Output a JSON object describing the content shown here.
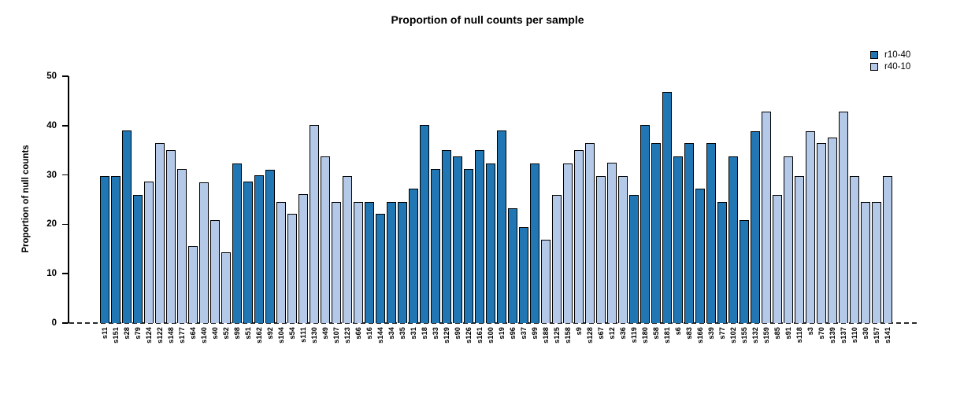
{
  "chart_data": {
    "type": "bar",
    "title": "Proportion of null counts per sample",
    "ylabel": "Proportion of null counts",
    "xlabel": "",
    "ylim": [
      0,
      50
    ],
    "yticks": [
      0,
      10,
      20,
      30,
      40,
      50
    ],
    "grid": false,
    "zero_baseline_style": "dashed",
    "legend_position": "top-right",
    "legend": [
      {
        "label": "r10-40",
        "color": "#2077b4"
      },
      {
        "label": "r40-10",
        "color": "#b4c9e7"
      }
    ],
    "series_colors": {
      "r10-40": "#2077b4",
      "r40-10": "#b4c9e7"
    },
    "bar_edge_color": "#000000",
    "bars": [
      {
        "sample": "s11",
        "value": 29.8,
        "group": "r10-40"
      },
      {
        "sample": "s151",
        "value": 29.8,
        "group": "r10-40"
      },
      {
        "sample": "s28",
        "value": 39.0,
        "group": "r10-40"
      },
      {
        "sample": "s79",
        "value": 26.0,
        "group": "r10-40"
      },
      {
        "sample": "s124",
        "value": 28.6,
        "group": "r40-10"
      },
      {
        "sample": "s122",
        "value": 36.4,
        "group": "r40-10"
      },
      {
        "sample": "s148",
        "value": 35.0,
        "group": "r40-10"
      },
      {
        "sample": "s177",
        "value": 31.2,
        "group": "r40-10"
      },
      {
        "sample": "s64",
        "value": 15.6,
        "group": "r40-10"
      },
      {
        "sample": "s140",
        "value": 28.5,
        "group": "r40-10"
      },
      {
        "sample": "s40",
        "value": 20.8,
        "group": "r40-10"
      },
      {
        "sample": "s52",
        "value": 14.3,
        "group": "r40-10"
      },
      {
        "sample": "s98",
        "value": 32.4,
        "group": "r10-40"
      },
      {
        "sample": "s51",
        "value": 28.6,
        "group": "r10-40"
      },
      {
        "sample": "s162",
        "value": 29.9,
        "group": "r10-40"
      },
      {
        "sample": "s92",
        "value": 31.1,
        "group": "r10-40"
      },
      {
        "sample": "s104",
        "value": 24.6,
        "group": "r40-10"
      },
      {
        "sample": "s54",
        "value": 22.1,
        "group": "r40-10"
      },
      {
        "sample": "s111",
        "value": 26.1,
        "group": "r40-10"
      },
      {
        "sample": "s130",
        "value": 40.2,
        "group": "r40-10"
      },
      {
        "sample": "s49",
        "value": 33.7,
        "group": "r40-10"
      },
      {
        "sample": "s107",
        "value": 24.6,
        "group": "r40-10"
      },
      {
        "sample": "s123",
        "value": 29.8,
        "group": "r40-10"
      },
      {
        "sample": "s66",
        "value": 24.6,
        "group": "r40-10"
      },
      {
        "sample": "s16",
        "value": 24.6,
        "group": "r10-40"
      },
      {
        "sample": "s144",
        "value": 22.1,
        "group": "r10-40"
      },
      {
        "sample": "s34",
        "value": 24.6,
        "group": "r10-40"
      },
      {
        "sample": "s35",
        "value": 24.6,
        "group": "r10-40"
      },
      {
        "sample": "s31",
        "value": 27.3,
        "group": "r10-40"
      },
      {
        "sample": "s18",
        "value": 40.1,
        "group": "r10-40"
      },
      {
        "sample": "s33",
        "value": 31.2,
        "group": "r10-40"
      },
      {
        "sample": "s129",
        "value": 35.0,
        "group": "r10-40"
      },
      {
        "sample": "s90",
        "value": 33.7,
        "group": "r10-40"
      },
      {
        "sample": "s126",
        "value": 31.2,
        "group": "r10-40"
      },
      {
        "sample": "s161",
        "value": 35.0,
        "group": "r10-40"
      },
      {
        "sample": "s100",
        "value": 32.4,
        "group": "r10-40"
      },
      {
        "sample": "s19",
        "value": 39.0,
        "group": "r10-40"
      },
      {
        "sample": "s96",
        "value": 23.3,
        "group": "r10-40"
      },
      {
        "sample": "s37",
        "value": 19.5,
        "group": "r10-40"
      },
      {
        "sample": "s99",
        "value": 32.4,
        "group": "r10-40"
      },
      {
        "sample": "s188",
        "value": 16.9,
        "group": "r40-10"
      },
      {
        "sample": "s125",
        "value": 26.0,
        "group": "r40-10"
      },
      {
        "sample": "s158",
        "value": 32.4,
        "group": "r40-10"
      },
      {
        "sample": "s9",
        "value": 35.0,
        "group": "r40-10"
      },
      {
        "sample": "s128",
        "value": 36.4,
        "group": "r40-10"
      },
      {
        "sample": "s67",
        "value": 29.8,
        "group": "r40-10"
      },
      {
        "sample": "s12",
        "value": 32.5,
        "group": "r40-10"
      },
      {
        "sample": "s36",
        "value": 29.8,
        "group": "r40-10"
      },
      {
        "sample": "s119",
        "value": 26.0,
        "group": "r10-40"
      },
      {
        "sample": "s180",
        "value": 40.2,
        "group": "r10-40"
      },
      {
        "sample": "s58",
        "value": 36.4,
        "group": "r10-40"
      },
      {
        "sample": "s181",
        "value": 46.8,
        "group": "r10-40"
      },
      {
        "sample": "s6",
        "value": 33.7,
        "group": "r10-40"
      },
      {
        "sample": "s83",
        "value": 36.4,
        "group": "r10-40"
      },
      {
        "sample": "s166",
        "value": 27.3,
        "group": "r10-40"
      },
      {
        "sample": "s39",
        "value": 36.4,
        "group": "r10-40"
      },
      {
        "sample": "s77",
        "value": 24.6,
        "group": "r10-40"
      },
      {
        "sample": "s102",
        "value": 33.7,
        "group": "r10-40"
      },
      {
        "sample": "s155",
        "value": 20.8,
        "group": "r10-40"
      },
      {
        "sample": "s132",
        "value": 38.9,
        "group": "r10-40"
      },
      {
        "sample": "s159",
        "value": 42.8,
        "group": "r40-10"
      },
      {
        "sample": "s85",
        "value": 26.0,
        "group": "r40-10"
      },
      {
        "sample": "s91",
        "value": 33.7,
        "group": "r40-10"
      },
      {
        "sample": "s118",
        "value": 29.8,
        "group": "r40-10"
      },
      {
        "sample": "s3",
        "value": 38.9,
        "group": "r40-10"
      },
      {
        "sample": "s70",
        "value": 36.4,
        "group": "r40-10"
      },
      {
        "sample": "s139",
        "value": 37.6,
        "group": "r40-10"
      },
      {
        "sample": "s137",
        "value": 42.8,
        "group": "r40-10"
      },
      {
        "sample": "s110",
        "value": 29.8,
        "group": "r40-10"
      },
      {
        "sample": "s30",
        "value": 24.6,
        "group": "r40-10"
      },
      {
        "sample": "s157",
        "value": 24.6,
        "group": "r40-10"
      },
      {
        "sample": "s141",
        "value": 29.8,
        "group": "r40-10"
      }
    ]
  }
}
